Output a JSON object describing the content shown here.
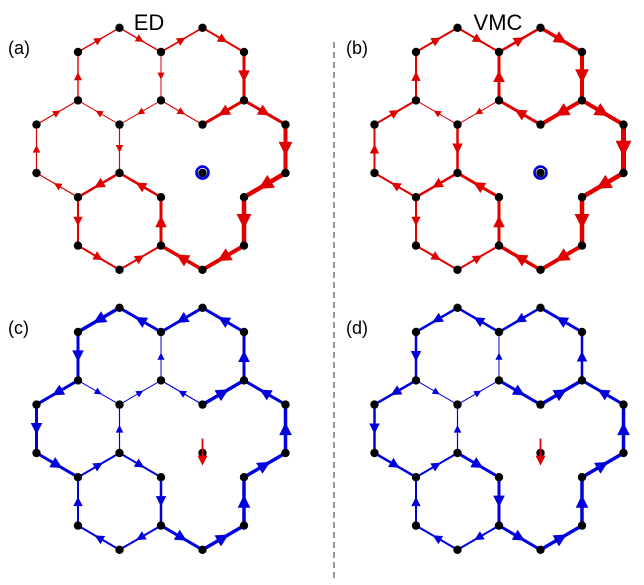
{
  "figure": {
    "column_titles": [
      "ED",
      "VMC"
    ],
    "panels": [
      {
        "label": "(a)",
        "bond_color": "#e00000",
        "marker": "ring"
      },
      {
        "label": "(b)",
        "bond_color": "#e00000",
        "marker": "ring"
      },
      {
        "label": "(c)",
        "bond_color": "#0000dd",
        "marker": "arrow"
      },
      {
        "label": "(d)",
        "bond_color": "#0000dd",
        "marker": "arrow"
      }
    ],
    "colors": {
      "node": "#000000",
      "divider": "#555555",
      "ring_marker": "#0000dd",
      "arrow_marker": "#e00000"
    }
  }
}
